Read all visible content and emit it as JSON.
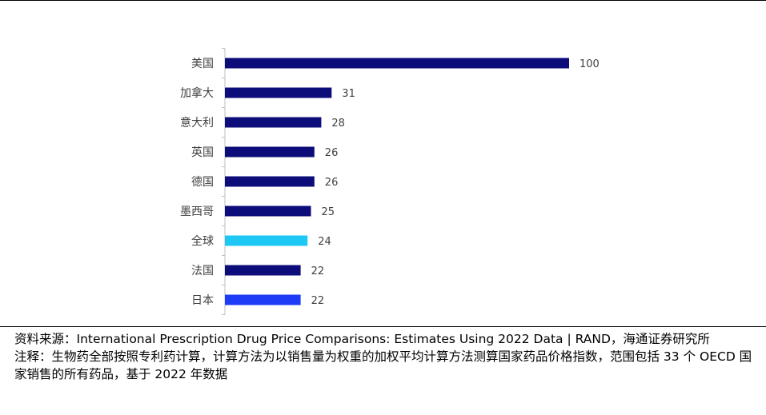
{
  "chart_data": {
    "type": "bar",
    "orientation": "horizontal",
    "categories": [
      "美国",
      "加拿大",
      "意大利",
      "英国",
      "德国",
      "墨西哥",
      "全球",
      "法国",
      "日本"
    ],
    "values": [
      100,
      31,
      28,
      26,
      26,
      25,
      24,
      22,
      22
    ],
    "value_labels": [
      "100",
      "31",
      "28",
      "26",
      "26",
      "25",
      "24",
      "22",
      "22"
    ],
    "colors": [
      "#0c0c7a",
      "#0c0c7a",
      "#0c0c7a",
      "#0c0c7a",
      "#0c0c7a",
      "#0c0c7a",
      "#1ec8f5",
      "#0c0c7a",
      "#1e3cf5"
    ],
    "xlim": [
      0,
      100
    ],
    "grid": false,
    "legend": false
  },
  "notes": {
    "source": "资料来源：International Prescription Drug Price Comparisons: Estimates Using 2022 Data | RAND，海通证券研究所",
    "note": "注释：生物药全部按照专利药计算，计算方法为以销售量为权重的加权平均计算方法测算国家药品价格指数，范围包括 33 个 OECD 国家销售的所有药品，基于 2022 年数据"
  }
}
